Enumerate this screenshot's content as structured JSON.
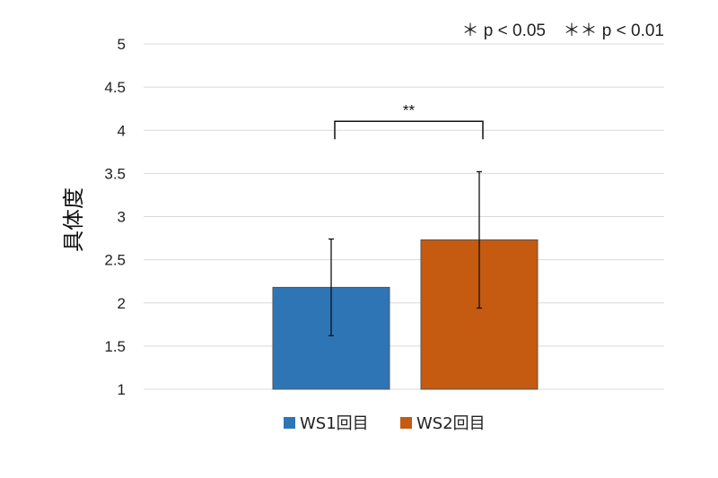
{
  "chart_data": {
    "type": "bar",
    "ylabel": "具体度",
    "ylim": [
      1,
      5
    ],
    "yticks": [
      "1",
      "1.5",
      "2",
      "2.5",
      "3",
      "3.5",
      "4",
      "4.5",
      "5"
    ],
    "grid": true,
    "legend_position": "bottom",
    "series": [
      {
        "name": "WS1回目",
        "value": 2.18,
        "error_low": 1.62,
        "error_high": 2.74,
        "color": "#2e75b6"
      },
      {
        "name": "WS2回目",
        "value": 2.73,
        "error_low": 1.94,
        "error_high": 3.52,
        "color": "#c55a11"
      }
    ],
    "significance": {
      "label": "**",
      "between": [
        "WS1回目",
        "WS2回目"
      ],
      "level": 4.0
    },
    "annotations": {
      "p05": "＊ p < 0.05",
      "p01": "＊＊ p < 0.01"
    }
  }
}
